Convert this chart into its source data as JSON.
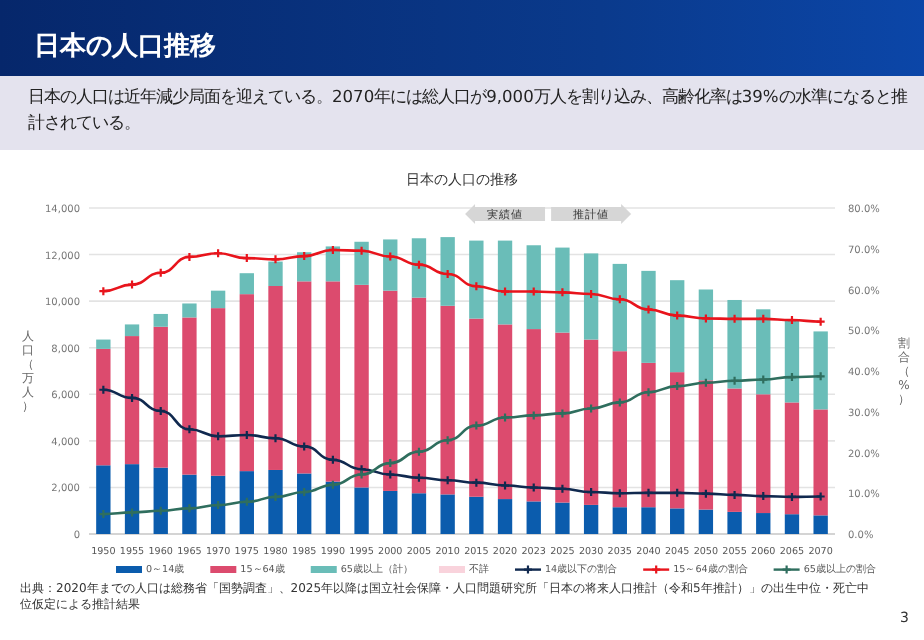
{
  "chart_data": {
    "type": "bar",
    "title": "日本の人口推移",
    "subtitle": "日本の人口は近年減少局面を迎えている。2070年には総人口が9,000万人を割り込み、高齢化率は39%の水準になると推計されている。",
    "ylabel": "人口（万人）",
    "y2label": "割合（%）",
    "annotations": [
      "日本の人口の推移",
      "実績値",
      "推計値",
      "出典：2020年までの人口は総務省「国勢調査」、2025年以降は国立社会保障・人口問題研究所「日本の将来人口推計（令和5年推計）」の出生中位・死亡中位仮定による推計結果",
      "3"
    ],
    "categories": [
      "1950",
      "1955",
      "1960",
      "1965",
      "1970",
      "1975",
      "1980",
      "1985",
      "1990",
      "1995",
      "2000",
      "2005",
      "2010",
      "2015",
      "2020",
      "2023",
      "2025",
      "2030",
      "2035",
      "2040",
      "2045",
      "2050",
      "2055",
      "2060",
      "2065",
      "2070"
    ],
    "stacked": true,
    "grid": "y",
    "legend": "bottom",
    "marker": "cross",
    "ylim": [
      0,
      14000
    ],
    "yticks": [
      0,
      {
        "value": 2000,
        "label": "2,000"
      },
      {
        "value": 4000,
        "label": "4,000"
      },
      {
        "value": 6000,
        "label": "6,000"
      },
      {
        "value": 8000,
        "label": "8,000"
      },
      {
        "value": 10000,
        "label": "10,000"
      },
      {
        "value": 12000,
        "label": "12,000"
      },
      {
        "value": 14000,
        "label": "14,000"
      }
    ],
    "y2lim": [
      0,
      80
    ],
    "y2ticks": [
      {
        "value": 0,
        "label": "0.0%"
      },
      {
        "value": 10,
        "label": "10.0%"
      },
      {
        "value": 20,
        "label": "20.0%"
      },
      {
        "value": 30,
        "label": "30.0%"
      },
      {
        "value": 40,
        "label": "40.0%"
      },
      {
        "value": 50,
        "label": "50.0%"
      },
      {
        "value": 60,
        "label": "60.0%"
      },
      {
        "value": 70,
        "label": "70.0%"
      },
      {
        "value": 80,
        "label": "80.0%"
      }
    ],
    "series": [
      {
        "name": "0～14歳",
        "color": "#0b5cad",
        "values": [
          2950,
          3000,
          2850,
          2550,
          2500,
          2700,
          2750,
          2600,
          2250,
          2000,
          1850,
          1750,
          1700,
          1600,
          1500,
          1400,
          1350,
          1250,
          1150,
          1150,
          1100,
          1050,
          950,
          900,
          850,
          800
        ]
      },
      {
        "name": "15～64歳",
        "color": "#dc4b6e",
        "values": [
          5000,
          5500,
          6050,
          6750,
          7200,
          7600,
          7900,
          8250,
          8600,
          8700,
          8600,
          8400,
          8100,
          7650,
          7500,
          7400,
          7300,
          7100,
          6700,
          6200,
          5850,
          5550,
          5300,
          5100,
          4800,
          4550
        ]
      },
      {
        "name": "65歳以上（計）",
        "color": "#6abdb8",
        "values": [
          400,
          500,
          550,
          600,
          750,
          900,
          1050,
          1250,
          1500,
          1850,
          2200,
          2550,
          2950,
          3350,
          3600,
          3600,
          3650,
          3700,
          3750,
          3950,
          3950,
          3900,
          3800,
          3650,
          3550,
          3350
        ]
      },
      {
        "name": "不詳",
        "color": "#f9d3dc",
        "values": [
          0,
          0,
          0,
          0,
          0,
          0,
          0,
          0,
          0,
          0,
          0,
          0,
          0,
          0,
          0,
          0,
          0,
          0,
          0,
          0,
          0,
          0,
          0,
          0,
          0,
          0
        ]
      },
      {
        "name": "14歳以下の割合",
        "type": "line",
        "axis": "y2",
        "color": "#10294f",
        "values": [
          35.4,
          33.4,
          30.2,
          25.7,
          24.0,
          24.3,
          23.5,
          21.5,
          18.2,
          15.9,
          14.6,
          13.8,
          13.2,
          12.6,
          11.9,
          11.4,
          11.1,
          10.3,
          10.0,
          10.1,
          10.1,
          9.9,
          9.6,
          9.3,
          9.1,
          9.2
        ]
      },
      {
        "name": "15～64歳の割合",
        "type": "line",
        "axis": "y2",
        "color": "#e8141c",
        "values": [
          59.6,
          61.2,
          64.1,
          68.0,
          68.9,
          67.7,
          67.4,
          68.2,
          69.7,
          69.5,
          68.1,
          66.1,
          63.8,
          60.8,
          59.5,
          59.5,
          59.3,
          58.9,
          57.6,
          55.1,
          53.6,
          52.9,
          52.8,
          52.8,
          52.5,
          52.1
        ]
      },
      {
        "name": "65歳以上の割合",
        "type": "line",
        "axis": "y2",
        "color": "#2f6e5e",
        "values": [
          4.9,
          5.3,
          5.7,
          6.3,
          7.1,
          7.9,
          9.1,
          10.3,
          12.1,
          14.6,
          17.4,
          20.2,
          23.0,
          26.6,
          28.6,
          29.1,
          29.6,
          30.8,
          32.3,
          34.8,
          36.3,
          37.1,
          37.6,
          37.9,
          38.5,
          38.7
        ]
      }
    ]
  }
}
